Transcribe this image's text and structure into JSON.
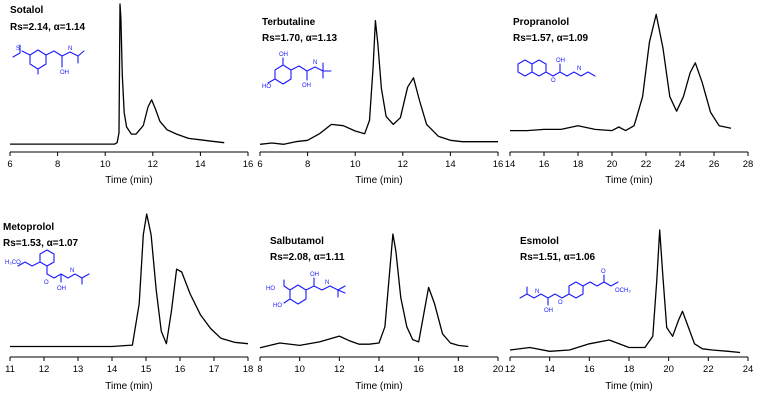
{
  "chart_data": [
    {
      "type": "line",
      "title": "Sotalol",
      "resolution": "Rs=2.14, α=1.14",
      "xlabel": "Time (min)",
      "xlim": [
        6,
        16
      ],
      "xticks": [
        "6",
        "8",
        "10",
        "12",
        "14",
        "16"
      ],
      "structure_icon": "sotalol-structure",
      "color": "#000000",
      "series": [
        {
          "x": [
            6.0,
            7.0,
            8.0,
            9.0,
            10.0,
            10.4,
            10.5,
            10.58,
            10.62,
            10.66,
            10.72,
            10.8,
            10.9,
            11.1,
            11.3,
            11.6,
            11.8,
            11.95,
            12.1,
            12.3,
            12.6,
            13.0,
            13.5,
            14.0,
            14.5,
            15.0
          ],
          "y": [
            0.02,
            0.02,
            0.02,
            0.02,
            0.02,
            0.02,
            0.03,
            0.1,
            1.0,
            0.9,
            0.5,
            0.24,
            0.14,
            0.09,
            0.09,
            0.15,
            0.28,
            0.33,
            0.27,
            0.18,
            0.12,
            0.09,
            0.06,
            0.05,
            0.04,
            0.03
          ]
        }
      ]
    },
    {
      "type": "line",
      "title": "Terbutaline",
      "resolution": "Rs=1.70, α=1.13",
      "xlabel": "Time (min)",
      "xlim": [
        6,
        16
      ],
      "xticks": [
        "6",
        "8",
        "10",
        "12",
        "14",
        "16"
      ],
      "structure_icon": "terbutaline-structure",
      "color": "#000000",
      "series": [
        {
          "x": [
            6.0,
            6.5,
            7.0,
            7.5,
            8.0,
            8.5,
            9.0,
            9.5,
            10.0,
            10.4,
            10.6,
            10.75,
            10.85,
            10.95,
            11.1,
            11.3,
            11.6,
            11.9,
            12.2,
            12.45,
            12.7,
            13.0,
            13.5,
            14.0,
            14.5,
            15.0,
            15.5,
            16.0
          ],
          "y": [
            0.02,
            0.03,
            0.02,
            0.04,
            0.05,
            0.1,
            0.17,
            0.16,
            0.12,
            0.1,
            0.2,
            0.6,
            0.95,
            0.78,
            0.44,
            0.23,
            0.17,
            0.22,
            0.45,
            0.52,
            0.35,
            0.17,
            0.08,
            0.05,
            0.04,
            0.04,
            0.04,
            0.04
          ]
        }
      ]
    },
    {
      "type": "line",
      "title": "Propranolol",
      "resolution": "Rs=1.57, α=1.09",
      "xlabel": "Time (min)",
      "xlim": [
        14,
        28
      ],
      "xticks": [
        "14",
        "16",
        "18",
        "20",
        "22",
        "24",
        "26",
        "28"
      ],
      "structure_icon": "propranolol-structure",
      "color": "#000000",
      "series": [
        {
          "x": [
            14.0,
            15.0,
            16.0,
            17.0,
            18.0,
            19.0,
            20.0,
            20.4,
            20.8,
            21.3,
            21.8,
            22.2,
            22.6,
            23.0,
            23.4,
            23.8,
            24.2,
            24.6,
            24.9,
            25.3,
            25.8,
            26.3,
            27.0
          ],
          "y": [
            0.02,
            0.02,
            0.03,
            0.03,
            0.06,
            0.03,
            0.02,
            0.05,
            0.02,
            0.06,
            0.3,
            0.75,
            0.98,
            0.7,
            0.3,
            0.18,
            0.3,
            0.5,
            0.58,
            0.42,
            0.17,
            0.06,
            0.04
          ]
        }
      ]
    },
    {
      "type": "line",
      "title": "Metoprolol",
      "resolution": "Rs=1.53, α=1.07",
      "xlabel": "Time (min)",
      "xlim": [
        11,
        18
      ],
      "xticks": [
        "11",
        "12",
        "13",
        "14",
        "15",
        "16",
        "17",
        "18"
      ],
      "structure_icon": "metoprolol-structure",
      "color": "#000000",
      "series": [
        {
          "x": [
            11.0,
            12.0,
            13.0,
            14.0,
            14.6,
            14.8,
            14.92,
            15.02,
            15.15,
            15.3,
            15.45,
            15.6,
            15.75,
            15.9,
            16.05,
            16.3,
            16.6,
            16.9,
            17.2,
            17.6,
            18.0
          ],
          "y": [
            0.04,
            0.04,
            0.04,
            0.04,
            0.05,
            0.35,
            0.85,
            1.0,
            0.85,
            0.45,
            0.15,
            0.06,
            0.3,
            0.6,
            0.58,
            0.42,
            0.27,
            0.17,
            0.1,
            0.07,
            0.06
          ]
        }
      ]
    },
    {
      "type": "line",
      "title": "Salbutamol",
      "resolution": "Rs=2.08, α=1.11",
      "xlabel": "Time (min)",
      "xlim": [
        8,
        20
      ],
      "xticks": [
        "8",
        "10",
        "12",
        "14",
        "16",
        "18",
        "20"
      ],
      "structure_icon": "salbutamol-structure",
      "color": "#000000",
      "series": [
        {
          "x": [
            8.0,
            9.0,
            10.0,
            11.0,
            12.0,
            12.5,
            13.0,
            13.5,
            14.0,
            14.3,
            14.55,
            14.7,
            14.85,
            15.1,
            15.4,
            15.7,
            16.0,
            16.3,
            16.5,
            16.8,
            17.2,
            17.6,
            18.0,
            18.5
          ],
          "y": [
            0.02,
            0.06,
            0.04,
            0.07,
            0.12,
            0.08,
            0.05,
            0.05,
            0.06,
            0.2,
            0.7,
            1.0,
            0.85,
            0.45,
            0.2,
            0.09,
            0.07,
            0.35,
            0.54,
            0.4,
            0.14,
            0.06,
            0.04,
            0.03
          ]
        }
      ]
    },
    {
      "type": "line",
      "title": "Esmolol",
      "resolution": "Rs=1.51, α=1.06",
      "xlabel": "Time (min)",
      "xlim": [
        12,
        24
      ],
      "xticks": [
        "12",
        "14",
        "16",
        "18",
        "20",
        "22",
        "24"
      ],
      "structure_icon": "esmolol-structure",
      "color": "#000000",
      "series": [
        {
          "x": [
            12.0,
            13.0,
            14.0,
            15.0,
            16.0,
            17.0,
            18.0,
            18.8,
            19.2,
            19.4,
            19.55,
            19.7,
            19.9,
            20.2,
            20.5,
            20.7,
            21.0,
            21.3,
            21.7,
            22.2,
            23.0,
            23.6
          ],
          "y": [
            0.04,
            0.06,
            0.03,
            0.04,
            0.09,
            0.12,
            0.06,
            0.06,
            0.15,
            0.6,
            1.0,
            0.65,
            0.22,
            0.15,
            0.28,
            0.35,
            0.22,
            0.09,
            0.05,
            0.04,
            0.03,
            0.02
          ]
        }
      ]
    }
  ]
}
